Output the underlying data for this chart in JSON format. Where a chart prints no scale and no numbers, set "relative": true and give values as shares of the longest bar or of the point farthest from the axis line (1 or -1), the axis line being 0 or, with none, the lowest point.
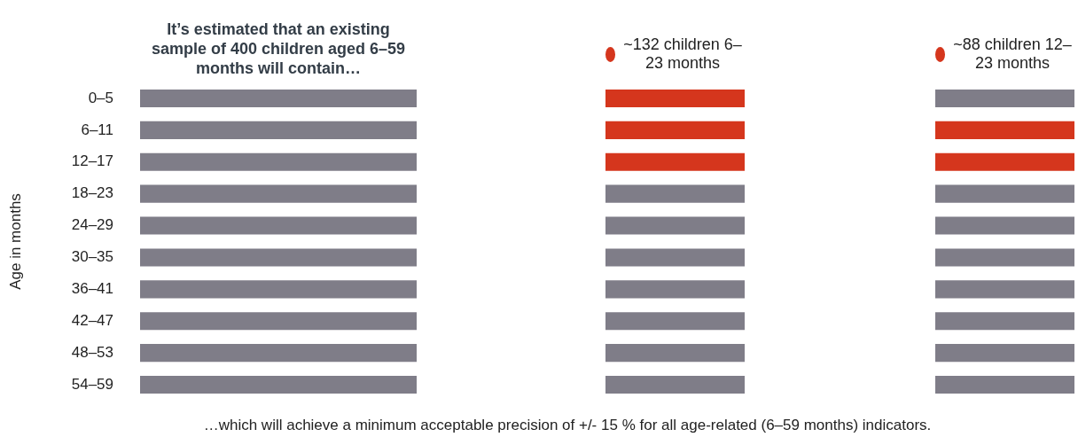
{
  "chart_data": [
    {
      "type": "bar",
      "orientation": "horizontal",
      "stacked": true,
      "relative": true,
      "title": "It’s estimated that an existing sample of 400 children aged 6–59 months will contain…",
      "ylabel": "Age in months",
      "tick_labels": "y",
      "categories": [
        "0–5",
        "6–11",
        "12–17",
        "18–23",
        "24–29",
        "30–35",
        "36–41",
        "42–47",
        "48–53",
        "54–59"
      ],
      "series": [
        {
          "color": "#7f7d88",
          "values": [
            1,
            1,
            1,
            1,
            1,
            1,
            1,
            1,
            1,
            1
          ]
        }
      ],
      "annotations": [
        "…which will achieve a minimum acceptable precision of +/- 15 % for all age-related (6–59 months) indicators."
      ]
    },
    {
      "type": "bar",
      "orientation": "horizontal",
      "stacked": true,
      "relative": true,
      "legend": "top",
      "categories": [
        null,
        null,
        null,
        null,
        null,
        null,
        null,
        null,
        null,
        null
      ],
      "series": [
        {
          "name": "~132 children 6–23 months",
          "color": "#d5361d",
          "values": [
            1,
            1,
            1,
            null,
            null,
            null,
            null,
            null,
            null,
            null
          ]
        },
        {
          "color": "#7f7d88",
          "values": [
            null,
            null,
            null,
            1,
            1,
            1,
            1,
            1,
            1,
            1
          ]
        }
      ]
    },
    {
      "type": "bar",
      "orientation": "horizontal",
      "stacked": true,
      "relative": true,
      "legend": "top",
      "categories": [
        null,
        null,
        null,
        null,
        null,
        null,
        null,
        null,
        null,
        null
      ],
      "series": [
        {
          "name": "~88 children 12–23 months",
          "color": "#d5361d",
          "values": [
            null,
            1,
            1,
            null,
            null,
            null,
            null,
            null,
            null,
            null
          ]
        },
        {
          "color": "#7f7d88",
          "values": [
            1,
            null,
            null,
            1,
            1,
            1,
            1,
            1,
            1,
            1
          ]
        }
      ]
    }
  ]
}
